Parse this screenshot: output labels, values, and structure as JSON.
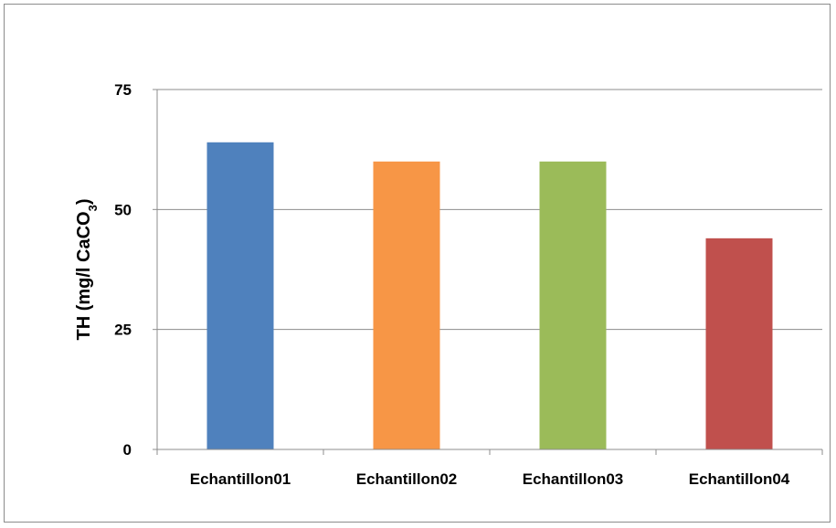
{
  "chart_data": {
    "type": "bar",
    "title": "",
    "xlabel": "",
    "ylabel": "TH (mg/l CaCO",
    "ylabel_subscript": "3",
    "ylabel_suffix": ")",
    "categories": [
      "Echantillon01",
      "Echantillon02",
      "Echantillon03",
      "Echantillon04"
    ],
    "values": [
      64,
      60,
      60,
      44
    ],
    "colors": [
      "#4f81bd",
      "#f79646",
      "#9bbb59",
      "#c0504d"
    ],
    "ylim": [
      0,
      75
    ],
    "yticks": [
      0,
      25,
      50,
      75
    ],
    "ytick_labels": [
      "0",
      "25",
      "50",
      "75"
    ],
    "grid": true,
    "legend": "none"
  }
}
